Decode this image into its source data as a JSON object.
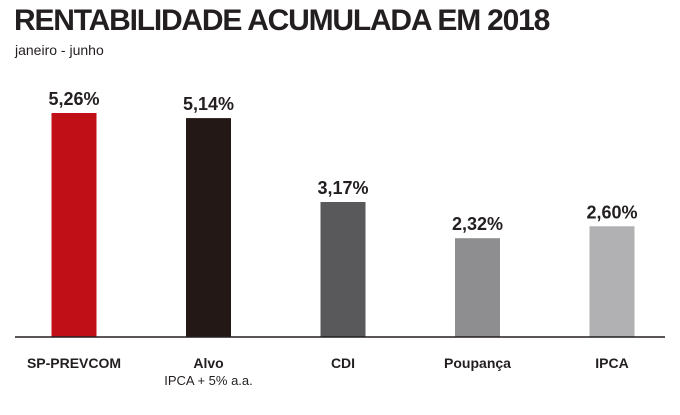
{
  "chart_data": {
    "type": "bar",
    "title": "RENTABILIDADE ACUMULADA EM 2018",
    "subtitle": "janeiro - junho",
    "categories": [
      "SP-PREVCOM",
      "Alvo",
      "CDI",
      "Poupança",
      "IPCA"
    ],
    "category_sublabels": [
      "",
      "IPCA + 5% a.a.",
      "",
      "",
      ""
    ],
    "values": [
      5.26,
      5.14,
      3.17,
      2.32,
      2.6
    ],
    "value_labels": [
      "5,26%",
      "5,14%",
      "3,17%",
      "2,32%",
      "2,60%"
    ],
    "colors": [
      "#c10f17",
      "#231815",
      "#59585a",
      "#8e8d90",
      "#b1b0b3"
    ],
    "ylim": [
      0,
      5.26
    ],
    "grid": false,
    "legend": "none"
  }
}
